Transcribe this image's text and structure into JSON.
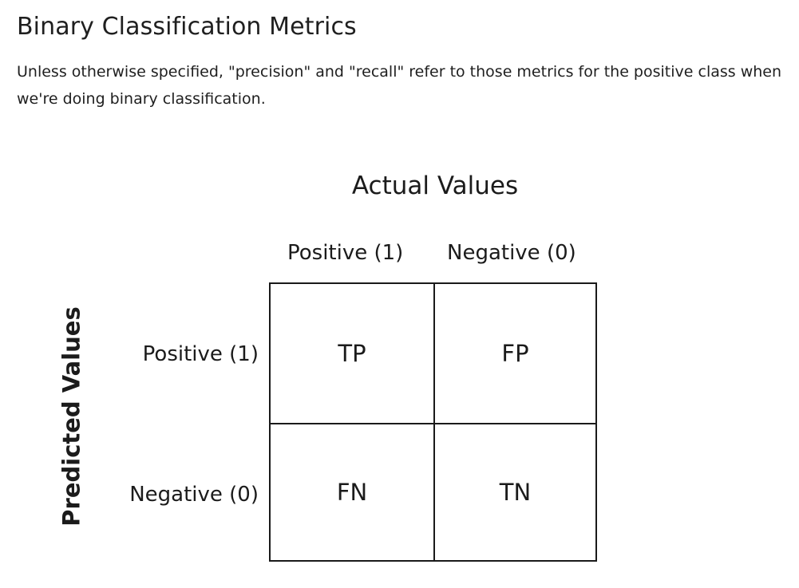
{
  "section": {
    "heading": "Binary Classification Metrics",
    "intro": "Unless otherwise specified, \"precision\" and \"recall\" refer to those metrics for the positive class when we're doing binary classification."
  },
  "confusion_matrix": {
    "column_axis_label": "Actual Values",
    "row_axis_label": "Predicted Values",
    "column_headers": [
      "Positive (1)",
      "Negative (0)"
    ],
    "row_headers": [
      "Positive (1)",
      "Negative (0)"
    ],
    "cells": [
      [
        "TP",
        "FP"
      ],
      [
        "FN",
        "TN"
      ]
    ]
  }
}
